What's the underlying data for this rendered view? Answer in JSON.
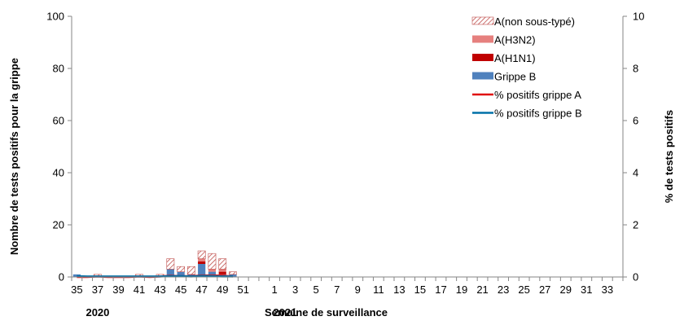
{
  "chart_data": {
    "type": "bar",
    "stacked": true,
    "grid": false,
    "legend_position": "top-right",
    "xlabel": "Semaine de surveillance",
    "ylabel": "Nombre de tests positifs pour la grippe",
    "y2label": "% de tests positifs",
    "ylim": [
      0,
      100
    ],
    "y2lim": [
      0,
      10
    ],
    "yticks": [
      "0",
      "20",
      "40",
      "60",
      "80",
      "100"
    ],
    "y2ticks": [
      "0",
      "2",
      "4",
      "6",
      "8",
      "10"
    ],
    "year_labels": [
      {
        "text": "2020",
        "week_index": 2
      },
      {
        "text": "2021",
        "week_index": 20
      }
    ],
    "weeks": [
      "35",
      "36",
      "37",
      "38",
      "39",
      "40",
      "41",
      "42",
      "43",
      "44",
      "45",
      "46",
      "47",
      "48",
      "49",
      "50",
      "51",
      "52",
      "53",
      "1",
      "2",
      "3",
      "4",
      "5",
      "6",
      "7",
      "8",
      "9",
      "10",
      "11",
      "12",
      "13",
      "14",
      "15",
      "16",
      "17",
      "18",
      "19",
      "20",
      "21",
      "22",
      "23",
      "24",
      "25",
      "26",
      "27",
      "28",
      "29",
      "30",
      "31",
      "32",
      "33",
      "34"
    ],
    "week_tick_labels": [
      "35",
      "",
      "37",
      "",
      "39",
      "",
      "41",
      "",
      "43",
      "",
      "45",
      "",
      "47",
      "",
      "49",
      "",
      "51",
      "",
      "",
      "1",
      "",
      "3",
      "",
      "5",
      "",
      "7",
      "",
      "9",
      "",
      "11",
      "",
      "13",
      "",
      "15",
      "",
      "17",
      "",
      "19",
      "",
      "21",
      "",
      "23",
      "",
      "25",
      "",
      "27",
      "",
      "29",
      "",
      "31",
      "",
      "33",
      ""
    ],
    "series": [
      {
        "name": "A(non sous-typé)",
        "kind": "bar",
        "color": "#c0504d",
        "pattern": "hatch",
        "values": [
          0,
          0,
          1,
          0,
          0,
          0,
          1,
          0,
          1,
          4,
          2,
          3,
          3,
          6,
          4,
          1,
          0,
          0,
          0,
          0,
          0,
          0,
          0,
          0,
          0,
          0,
          0,
          0,
          0,
          0,
          0,
          0,
          0,
          0,
          0,
          0,
          0,
          0,
          0,
          0,
          0,
          0,
          0,
          0,
          0,
          0,
          0,
          0,
          0,
          0,
          0,
          0,
          0
        ]
      },
      {
        "name": "A(H3N2)",
        "kind": "bar",
        "color": "#e6807e",
        "values": [
          0,
          0,
          0,
          0,
          0,
          0,
          0,
          0,
          0,
          0,
          0,
          0,
          1,
          1,
          1,
          0,
          0,
          0,
          0,
          0,
          0,
          0,
          0,
          0,
          0,
          0,
          0,
          0,
          0,
          0,
          0,
          0,
          0,
          0,
          0,
          0,
          0,
          0,
          0,
          0,
          0,
          0,
          0,
          0,
          0,
          0,
          0,
          0,
          0,
          0,
          0,
          0,
          0
        ]
      },
      {
        "name": "A(H1N1)",
        "kind": "bar",
        "color": "#c00000",
        "values": [
          0,
          0,
          0,
          0,
          0,
          0,
          0,
          0,
          0,
          0,
          0,
          0,
          1,
          0,
          1,
          0,
          0,
          0,
          0,
          0,
          0,
          0,
          0,
          0,
          0,
          0,
          0,
          0,
          0,
          0,
          0,
          0,
          0,
          0,
          0,
          0,
          0,
          0,
          0,
          0,
          0,
          0,
          0,
          0,
          0,
          0,
          0,
          0,
          0,
          0,
          0,
          0,
          0
        ]
      },
      {
        "name": "Grippe B",
        "kind": "bar",
        "color": "#4f81bd",
        "values": [
          1,
          0,
          0,
          0,
          0,
          0,
          0,
          0,
          0,
          3,
          2,
          1,
          5,
          2,
          1,
          1,
          0,
          0,
          0,
          0,
          0,
          0,
          0,
          0,
          0,
          0,
          0,
          0,
          0,
          0,
          0,
          0,
          0,
          0,
          0,
          0,
          0,
          0,
          0,
          0,
          0,
          0,
          0,
          0,
          0,
          0,
          0,
          0,
          0,
          0,
          0,
          0,
          0
        ]
      },
      {
        "name": "% positifs grippe A",
        "kind": "line",
        "axis": "right",
        "color": "#e01010",
        "values": [
          0,
          0,
          0.02,
          0,
          0,
          0,
          0.02,
          0,
          0.02,
          0.05,
          0.03,
          0.03,
          0.06,
          0.06,
          0.05,
          0.02,
          null,
          null,
          null,
          null,
          null,
          null,
          null,
          null,
          null,
          null,
          null,
          null,
          null,
          null,
          null,
          null,
          null,
          null,
          null,
          null,
          null,
          null,
          null,
          null,
          null,
          null,
          null,
          null,
          null,
          null,
          null,
          null,
          null,
          null,
          null,
          null,
          null
        ]
      },
      {
        "name": "% positifs grippe B",
        "kind": "line",
        "axis": "right",
        "color": "#0070a8",
        "values": [
          0.03,
          0.02,
          0.02,
          0.02,
          0.02,
          0.02,
          0.02,
          0.02,
          0.02,
          0.03,
          0.03,
          0.02,
          0.04,
          0.03,
          0.02,
          0.02,
          null,
          null,
          null,
          null,
          null,
          null,
          null,
          null,
          null,
          null,
          null,
          null,
          null,
          null,
          null,
          null,
          null,
          null,
          null,
          null,
          null,
          null,
          null,
          null,
          null,
          null,
          null,
          null,
          null,
          null,
          null,
          null,
          null,
          null,
          null,
          null,
          null
        ]
      }
    ]
  }
}
